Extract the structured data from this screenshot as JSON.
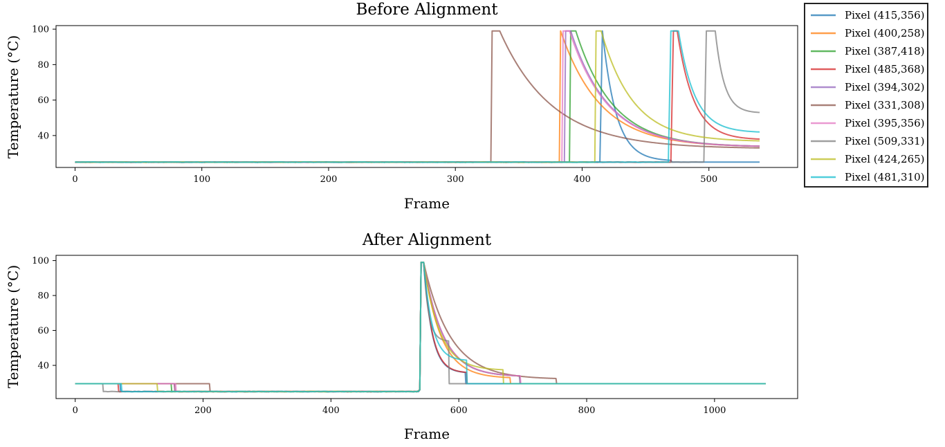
{
  "chart_data": [
    {
      "type": "line",
      "title": "Before Alignment",
      "xlabel": "Frame",
      "ylabel": "Temperature (°C)",
      "xlim": [
        -15,
        570
      ],
      "ylim": [
        22,
        102
      ],
      "xticks": [
        0,
        100,
        200,
        300,
        400,
        500
      ],
      "yticks": [
        40,
        60,
        80,
        100
      ],
      "baseline": 25,
      "x_max": 540,
      "series": [
        {
          "name": "Pixel (415,356)",
          "color": "#1f77b4",
          "rise": 416,
          "fall_at": 416,
          "decay_to": 26,
          "decay_end": 470
        },
        {
          "name": "Pixel (400,258)",
          "color": "#ff7f0e",
          "rise": 383,
          "fall_at": 383,
          "decay_to": 34,
          "decay_end": 540
        },
        {
          "name": "Pixel (387,418)",
          "color": "#2ca02c",
          "rise": 391,
          "fall_at": 395,
          "decay_to": 34,
          "decay_end": 540
        },
        {
          "name": "Pixel (485,368)",
          "color": "#d62728",
          "rise": 472,
          "fall_at": 475,
          "decay_to": 38,
          "decay_end": 540
        },
        {
          "name": "Pixel (394,302)",
          "color": "#9467bd",
          "rise": 387,
          "fall_at": 391,
          "decay_to": 34,
          "decay_end": 540
        },
        {
          "name": "Pixel (331,308)",
          "color": "#8c564b",
          "rise": 329,
          "fall_at": 335,
          "decay_to": 33,
          "decay_end": 540
        },
        {
          "name": "Pixel (395,356)",
          "color": "#e377c2",
          "rise": 385,
          "fall_at": 390,
          "decay_to": 34,
          "decay_end": 540
        },
        {
          "name": "Pixel (509,331)",
          "color": "#7f7f7f",
          "rise": 498,
          "fall_at": 505,
          "decay_to": 53,
          "decay_end": 540
        },
        {
          "name": "Pixel (424,265)",
          "color": "#bcbd22",
          "rise": 411,
          "fall_at": 415,
          "decay_to": 37,
          "decay_end": 540
        },
        {
          "name": "Pixel (481,310)",
          "color": "#17becf",
          "rise": 470,
          "fall_at": 476,
          "decay_to": 42,
          "decay_end": 540
        }
      ]
    },
    {
      "type": "line",
      "title": "After Alignment",
      "xlabel": "Frame",
      "ylabel": "Temperature (°C)",
      "xlim": [
        -30,
        1130
      ],
      "ylim": [
        21,
        103
      ],
      "xticks": [
        0,
        200,
        400,
        600,
        800,
        1000
      ],
      "yticks": [
        40,
        60,
        80,
        100
      ],
      "baseline": 25,
      "pad_level": 29.5,
      "peak_frame": 540,
      "x_max": 1080,
      "series": [
        {
          "name": "Pixel (415,356)",
          "color": "#1f77b4",
          "pre_pad_end": 70,
          "decay_end": 610,
          "decay_to": 36
        },
        {
          "name": "Pixel (400,258)",
          "color": "#ff7f0e",
          "pre_pad_end": 155,
          "decay_end": 680,
          "decay_to": 33
        },
        {
          "name": "Pixel (387,418)",
          "color": "#2ca02c",
          "pre_pad_end": 150,
          "decay_end": 695,
          "decay_to": 34
        },
        {
          "name": "Pixel (485,368)",
          "color": "#d62728",
          "pre_pad_end": 67,
          "decay_end": 612,
          "decay_to": 36
        },
        {
          "name": "Pixel (394,302)",
          "color": "#9467bd",
          "pre_pad_end": 155,
          "decay_end": 695,
          "decay_to": 34
        },
        {
          "name": "Pixel (331,308)",
          "color": "#8c564b",
          "pre_pad_end": 210,
          "decay_end": 752,
          "decay_to": 32.5
        },
        {
          "name": "Pixel (395,356)",
          "color": "#e377c2",
          "pre_pad_end": 157,
          "decay_end": 696,
          "decay_to": 34
        },
        {
          "name": "Pixel (509,331)",
          "color": "#7f7f7f",
          "pre_pad_end": 43,
          "decay_end": 584,
          "decay_to": 54
        },
        {
          "name": "Pixel (424,265)",
          "color": "#bcbd22",
          "pre_pad_end": 128,
          "decay_end": 669,
          "decay_to": 37.5
        },
        {
          "name": "Pixel (481,310)",
          "color": "#17becf",
          "pre_pad_end": 72,
          "decay_end": 612,
          "decay_to": 43
        }
      ]
    }
  ],
  "legend": {
    "placement": "upper-right outside",
    "entries": [
      "Pixel (415,356)",
      "Pixel (400,258)",
      "Pixel (387,418)",
      "Pixel (485,368)",
      "Pixel (394,302)",
      "Pixel (331,308)",
      "Pixel (395,356)",
      "Pixel (509,331)",
      "Pixel (424,265)",
      "Pixel (481,310)"
    ]
  }
}
